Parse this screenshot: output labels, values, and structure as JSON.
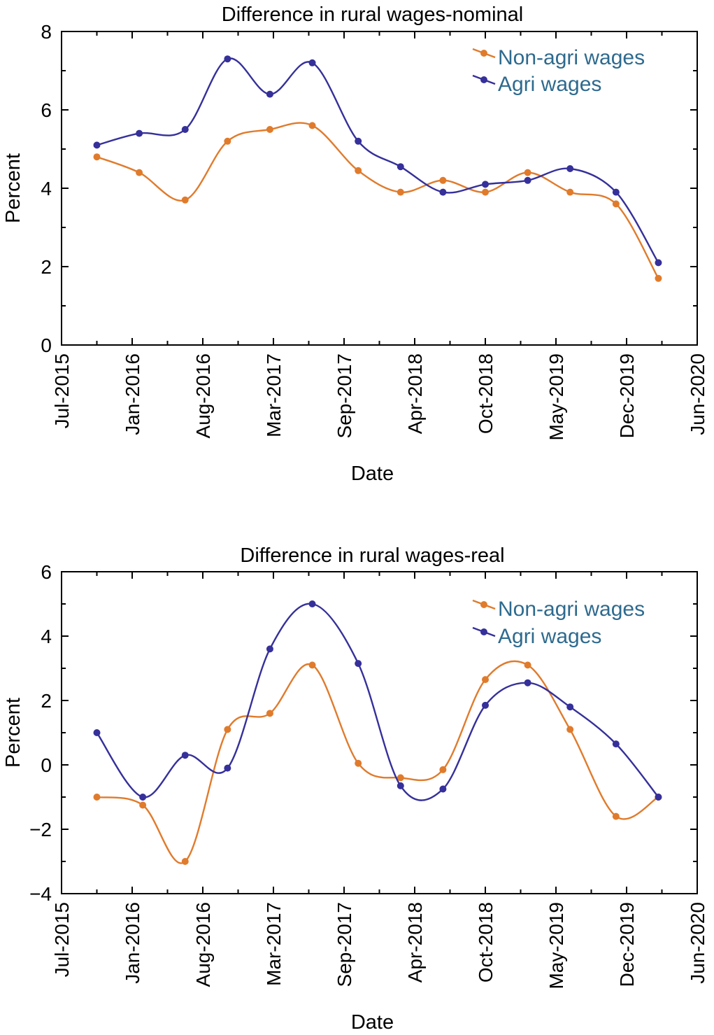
{
  "chart_data": [
    {
      "type": "line",
      "title": "Difference in rural wages-nominal",
      "xlabel": "Date",
      "ylabel": "Percent",
      "ylim": [
        0,
        8
      ],
      "yticks": [
        0,
        2,
        4,
        6,
        8
      ],
      "xticks": [
        "Jul-2015",
        "Jan-2016",
        "Aug-2016",
        "Mar-2017",
        "Sep-2017",
        "Apr-2018",
        "Oct-2018",
        "May-2019",
        "Dec-2019",
        "Jun-2020"
      ],
      "legend_position": "top-right",
      "series": [
        {
          "name": "Non-agri wages",
          "color": "#e07b2c",
          "x": [
            0.5,
            1.1,
            1.75,
            2.35,
            2.95,
            3.55,
            4.2,
            4.8,
            5.4,
            6.0,
            6.6,
            7.2,
            7.85,
            8.45
          ],
          "values": [
            4.8,
            4.4,
            3.7,
            5.2,
            5.5,
            5.6,
            4.45,
            3.9,
            4.2,
            3.9,
            4.4,
            3.9,
            3.6,
            1.7
          ]
        },
        {
          "name": "Agri wages",
          "color": "#35309a",
          "x": [
            0.5,
            1.1,
            1.75,
            2.35,
            2.95,
            3.55,
            4.2,
            4.8,
            5.4,
            6.0,
            6.6,
            7.2,
            7.85,
            8.45
          ],
          "values": [
            5.1,
            5.4,
            5.5,
            7.3,
            6.4,
            7.2,
            5.2,
            4.55,
            3.9,
            4.1,
            4.2,
            4.5,
            3.9,
            2.1
          ]
        }
      ]
    },
    {
      "type": "line",
      "title": "Difference in rural wages-real",
      "xlabel": "Date",
      "ylabel": "Percent",
      "ylim": [
        -4,
        6
      ],
      "yticks": [
        -4,
        -2,
        0,
        2,
        4,
        6
      ],
      "ytick_labels": [
        "−4",
        "−2",
        "0",
        "2",
        "4",
        "6"
      ],
      "xticks": [
        "Jul-2015",
        "Jan-2016",
        "Aug-2016",
        "Mar-2017",
        "Sep-2017",
        "Apr-2018",
        "Oct-2018",
        "May-2019",
        "Dec-2019",
        "Jun-2020"
      ],
      "legend_position": "top-right",
      "series": [
        {
          "name": "Non-agri wages",
          "color": "#e07b2c",
          "x": [
            0.5,
            1.15,
            1.75,
            2.35,
            2.95,
            3.55,
            4.2,
            4.8,
            5.4,
            6.0,
            6.6,
            7.2,
            7.85,
            8.45
          ],
          "values": [
            -1.0,
            -1.25,
            -3.0,
            1.1,
            1.6,
            3.1,
            0.05,
            -0.4,
            -0.15,
            2.65,
            3.1,
            1.1,
            -1.6,
            -1.0
          ]
        },
        {
          "name": "Agri wages",
          "color": "#35309a",
          "x": [
            0.5,
            1.15,
            1.75,
            2.35,
            2.95,
            3.55,
            4.2,
            4.8,
            5.4,
            6.0,
            6.6,
            7.2,
            7.85,
            8.45
          ],
          "values": [
            1.0,
            -1.0,
            0.3,
            -0.1,
            3.6,
            5.0,
            3.15,
            -0.65,
            -0.75,
            1.85,
            2.55,
            1.8,
            0.65,
            -1.0
          ]
        }
      ]
    }
  ]
}
